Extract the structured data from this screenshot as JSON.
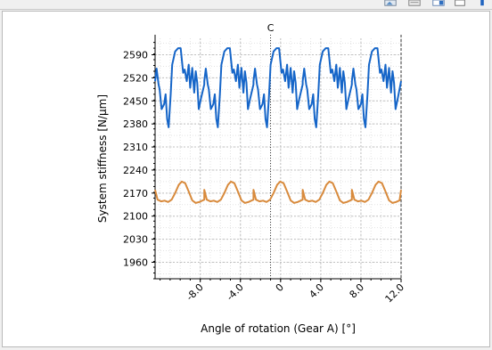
{
  "toolbar": {
    "icons": [
      "image-tool-icon",
      "document-tool-icon",
      "table-tool-icon",
      "save-tool-icon",
      "pin-tool-icon"
    ]
  },
  "colors": {
    "series_upper": "#1565c8",
    "series_lower": "#d88a3c",
    "grid": "#c0c0c0"
  },
  "chart_data": {
    "type": "line",
    "xlabel": "Angle of rotation (Gear A) [°]",
    "ylabel": "System stiffness [N/µm]",
    "xlim": [
      -12.5,
      12.0
    ],
    "ylim": [
      1910,
      2640
    ],
    "x_ticks": [
      -8.0,
      -4.0,
      0,
      4.0,
      8.0,
      12.0
    ],
    "x_tick_labels": [
      "-8.0",
      "-4.0",
      "0",
      "4.0",
      "8.0",
      "12.0"
    ],
    "y_ticks": [
      1960,
      2030,
      2100,
      2170,
      2240,
      2310,
      2380,
      2450,
      2520,
      2590
    ],
    "y_tick_labels": [
      "1960",
      "2030",
      "2100",
      "2170",
      "2240",
      "2310",
      "2380",
      "2450",
      "2520",
      "2590"
    ],
    "grid": true,
    "markers": [
      {
        "label": "C",
        "x": -1.0,
        "style": "dotted"
      },
      {
        "label": "",
        "x": 12.0,
        "style": "dashed"
      }
    ],
    "period": 4.9,
    "series": [
      {
        "values_one_period_x": [
          -12.5,
          -12.35,
          -12.15,
          -12.05,
          -11.85,
          -11.6,
          -11.45,
          -11.3,
          -11.15,
          -10.95,
          -10.8,
          -10.5,
          -10.2,
          -9.95,
          -9.7,
          -9.55,
          -9.35,
          -9.15,
          -9.0,
          -8.8,
          -8.6,
          -8.45,
          -8.3,
          -8.15,
          -7.95,
          -7.6
        ],
        "values_one_period_y": [
          2510,
          2548,
          2500,
          2485,
          2425,
          2440,
          2470,
          2395,
          2370,
          2470,
          2560,
          2600,
          2610,
          2610,
          2535,
          2545,
          2510,
          2560,
          2490,
          2550,
          2475,
          2540,
          2505,
          2425,
          2455,
          2500
        ]
      },
      {
        "values_one_period_x": [
          -12.5,
          -12.25,
          -11.9,
          -11.55,
          -11.2,
          -10.85,
          -10.5,
          -10.15,
          -9.85,
          -9.5,
          -9.15,
          -8.8,
          -8.45,
          -8.1,
          -7.75,
          -7.6
        ],
        "values_one_period_y": [
          2180,
          2150,
          2145,
          2147,
          2143,
          2150,
          2170,
          2195,
          2205,
          2200,
          2175,
          2148,
          2140,
          2143,
          2148,
          2150
        ]
      }
    ]
  }
}
